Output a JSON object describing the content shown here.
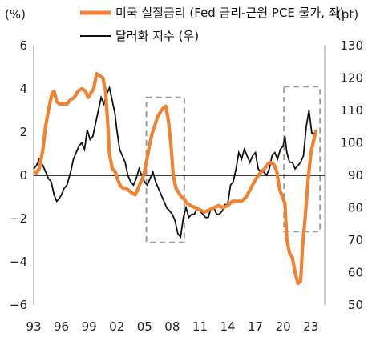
{
  "chart_data": {
    "type": "line",
    "left_axis_unit": "(%)",
    "right_axis_unit": "(pt)",
    "x_ticks": [
      "93",
      "96",
      "99",
      "02",
      "05",
      "08",
      "11",
      "14",
      "17",
      "20",
      "23"
    ],
    "y_left": {
      "min": -6,
      "max": 6,
      "ticks": [
        "6",
        "4",
        "2",
        "0",
        "-2",
        "-4",
        "-6"
      ]
    },
    "y_right": {
      "min": 50,
      "max": 130,
      "ticks": [
        "130",
        "120",
        "110",
        "100",
        "90",
        "80",
        "70",
        "60",
        "50"
      ]
    },
    "series": [
      {
        "name": "미국 실질금리 (Fed 금리-근원 PCE 물가, 좌)",
        "axis": "left",
        "color": "#F08232",
        "x": [
          1993.0,
          1993.3,
          1993.6,
          1994.0,
          1994.3,
          1994.6,
          1995.0,
          1995.2,
          1995.5,
          1995.8,
          1996.2,
          1996.6,
          1997.0,
          1997.4,
          1997.8,
          1998.2,
          1998.6,
          1998.9,
          1999.2,
          1999.5,
          1999.8,
          2000.2,
          2000.5,
          2000.8,
          2001.0,
          2001.2,
          2001.5,
          2001.8,
          2002.1,
          2002.4,
          2002.7,
          2003.0,
          2003.3,
          2003.6,
          2004.0,
          2004.3,
          2004.6,
          2004.9,
          2005.2,
          2005.5,
          2005.8,
          2006.1,
          2006.4,
          2006.7,
          2007.0,
          2007.3,
          2007.6,
          2007.9,
          2008.1,
          2008.4,
          2008.7,
          2009.0,
          2009.3,
          2009.6,
          2010.0,
          2010.5,
          2011.0,
          2011.5,
          2012.0,
          2012.5,
          2013.0,
          2013.5,
          2014.0,
          2014.5,
          2015.0,
          2015.5,
          2016.0,
          2016.5,
          2017.0,
          2017.5,
          2018.0,
          2018.3,
          2018.6,
          2019.0,
          2019.3,
          2019.6,
          2020.0,
          2020.2,
          2020.4,
          2020.7,
          2021.0,
          2021.3,
          2021.6,
          2021.9,
          2022.1,
          2022.4,
          2022.7,
          2023.0,
          2023.3,
          2023.6
        ],
        "values": [
          0.2,
          0.1,
          0.3,
          1.2,
          2.3,
          3.0,
          3.8,
          3.9,
          3.4,
          3.3,
          3.3,
          3.3,
          3.5,
          3.6,
          3.9,
          4.0,
          3.9,
          3.6,
          3.8,
          4.0,
          4.7,
          4.6,
          4.5,
          3.8,
          2.5,
          1.0,
          0.3,
          0.2,
          -0.2,
          -0.5,
          -0.6,
          -0.6,
          -0.7,
          -0.8,
          -0.9,
          -0.6,
          -0.3,
          0.0,
          0.6,
          1.3,
          1.9,
          2.3,
          2.7,
          2.9,
          3.1,
          3.2,
          2.5,
          1.2,
          0.0,
          -0.6,
          -0.8,
          -1.0,
          -1.1,
          -1.3,
          -1.4,
          -1.5,
          -1.6,
          -1.7,
          -1.6,
          -1.5,
          -1.4,
          -1.5,
          -1.4,
          -1.2,
          -1.2,
          -1.2,
          -1.0,
          -0.6,
          -0.2,
          0.1,
          0.3,
          0.5,
          0.6,
          0.5,
          0.2,
          -0.6,
          -1.1,
          -1.3,
          -3.0,
          -3.6,
          -3.8,
          -4.5,
          -5.0,
          -4.9,
          -3.3,
          -1.9,
          -0.2,
          1.0,
          1.6,
          2.1
        ]
      },
      {
        "name": "달러화 지수 (우)",
        "axis": "right",
        "color": "#111111",
        "x": [
          1993.0,
          1993.3,
          1993.6,
          1994.0,
          1994.3,
          1994.6,
          1994.9,
          1995.2,
          1995.5,
          1995.8,
          1996.0,
          1996.3,
          1996.6,
          1997.0,
          1997.3,
          1997.6,
          1997.9,
          1998.2,
          1998.5,
          1998.8,
          1999.1,
          1999.4,
          1999.7,
          2000.0,
          2000.3,
          2000.6,
          2000.9,
          2001.2,
          2001.5,
          2001.8,
          2002.0,
          2002.3,
          2002.6,
          2002.9,
          2003.2,
          2003.5,
          2003.8,
          2004.1,
          2004.4,
          2004.7,
          2005.0,
          2005.3,
          2005.6,
          2005.9,
          2006.2,
          2006.5,
          2006.8,
          2007.1,
          2007.4,
          2007.7,
          2008.0,
          2008.3,
          2008.6,
          2008.9,
          2009.2,
          2009.5,
          2009.8,
          2010.1,
          2010.4,
          2010.7,
          2011.0,
          2011.3,
          2011.6,
          2011.9,
          2012.2,
          2012.5,
          2012.8,
          2013.1,
          2013.4,
          2013.7,
          2014.0,
          2014.3,
          2014.6,
          2014.9,
          2015.2,
          2015.5,
          2015.8,
          2016.1,
          2016.4,
          2016.7,
          2017.0,
          2017.3,
          2017.6,
          2017.9,
          2018.2,
          2018.5,
          2018.8,
          2019.1,
          2019.4,
          2019.7,
          2020.0,
          2020.2,
          2020.4,
          2020.7,
          2021.0,
          2021.3,
          2021.6,
          2021.9,
          2022.2,
          2022.5,
          2022.8,
          2023.1,
          2023.4,
          2023.7
        ],
        "values": [
          92,
          93,
          95,
          93,
          91,
          89,
          88,
          84,
          82,
          83,
          84,
          86,
          87,
          91,
          95,
          97,
          99,
          100,
          98,
          104,
          101,
          102,
          106,
          110,
          114,
          112,
          115,
          117,
          113,
          109,
          104,
          98,
          96,
          94,
          90,
          88,
          87,
          89,
          92,
          90,
          88,
          87,
          89,
          91,
          88,
          86,
          84,
          82,
          80,
          79,
          78,
          76,
          72,
          71,
          77,
          80,
          77,
          78,
          78,
          80,
          79,
          78,
          77,
          77,
          80,
          80,
          78,
          78,
          79,
          81,
          81,
          87,
          88,
          92,
          97,
          95,
          98,
          96,
          94,
          96,
          97,
          92,
          91,
          91,
          90,
          92,
          96,
          97,
          95,
          98,
          99,
          102,
          97,
          94,
          94,
          92,
          93,
          94,
          96,
          105,
          110,
          103,
          103,
          103
        ]
      }
    ],
    "highlight_boxes": [
      {
        "x_range": [
          2005.2,
          2009.3
        ],
        "y_range_left": [
          -3.1,
          3.6
        ]
      },
      {
        "x_range": [
          2020.1,
          2024.0
        ],
        "y_range_left": [
          -2.6,
          4.1
        ]
      }
    ]
  }
}
